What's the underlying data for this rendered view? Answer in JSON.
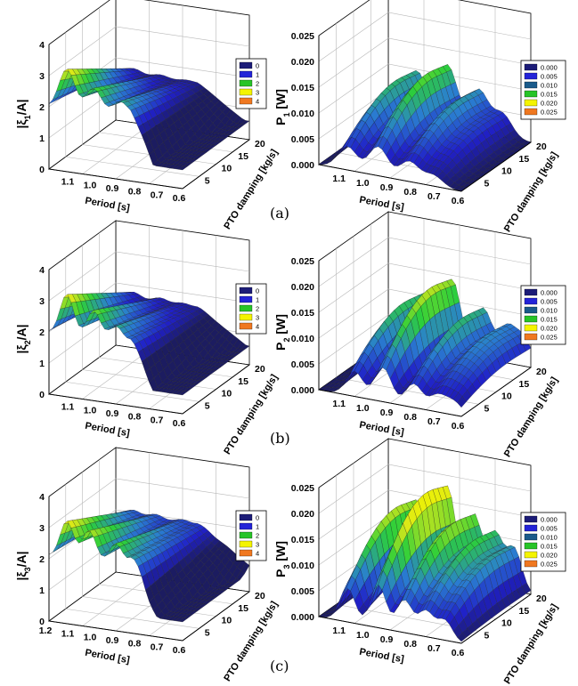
{
  "figure": {
    "rows": [
      {
        "panel_label": "(a)"
      },
      {
        "panel_label": "(b)"
      },
      {
        "panel_label": "(c)"
      }
    ]
  },
  "chart_data": [
    {
      "type": "surface3d",
      "row": 0,
      "col": 0,
      "zlabel_main": "|ξ",
      "zlabel_sub": "1",
      "zlabel_tail": "/A|",
      "xlabel": "Period [s]",
      "ylabel": "PTO damping [kg/s]",
      "x_ticks": [
        "1.1",
        "1.0",
        "0.9",
        "0.8",
        "0.7",
        "0.6"
      ],
      "xlim": [
        1.2,
        0.6
      ],
      "y_ticks": [
        "5",
        "10",
        "15",
        "20"
      ],
      "ylim": [
        0,
        20
      ],
      "z_ticks": [
        "0",
        "1",
        "2",
        "3",
        "4"
      ],
      "zlim": [
        0,
        4
      ],
      "legend": [
        "0",
        "1",
        "2",
        "3",
        "4"
      ],
      "legend_colors": [
        "#1c1c78",
        "#2424d8",
        "#27c427",
        "#f4f400",
        "#f07820"
      ],
      "peaks": [
        [
          1.12,
          3.3
        ],
        [
          1.0,
          2.8
        ],
        [
          0.88,
          2.5
        ],
        [
          0.78,
          2.2
        ]
      ],
      "peak_width": 0.035,
      "base": 2.0,
      "decay": 0.045
    },
    {
      "type": "surface3d",
      "row": 0,
      "col": 1,
      "zlabel_main": "P",
      "zlabel_sub": "1",
      "zlabel_tail": " [W]",
      "xlabel": "Period [s]",
      "ylabel": "PTO damping [kg/s]",
      "x_ticks": [
        "1.1",
        "1.0",
        "0.9",
        "0.8",
        "0.7",
        "0.6"
      ],
      "xlim": [
        1.2,
        0.6
      ],
      "y_ticks": [
        "5",
        "10",
        "15",
        "20"
      ],
      "ylim": [
        0,
        20
      ],
      "z_ticks": [
        "0.000",
        "0.005",
        "0.010",
        "0.015",
        "0.020",
        "0.025"
      ],
      "zlim": [
        0,
        0.025
      ],
      "legend": [
        "0.000",
        "0.005",
        "0.010",
        "0.015",
        "0.020",
        "0.025"
      ],
      "legend_colors": [
        "#1c1c78",
        "#2424d8",
        "#1a5a8a",
        "#27c427",
        "#f4f400",
        "#f07820"
      ],
      "peaks": [
        [
          1.08,
          0.013
        ],
        [
          0.95,
          0.016
        ],
        [
          0.82,
          0.011
        ],
        [
          0.72,
          0.006
        ]
      ],
      "peak_width": 0.04,
      "base": 0.0,
      "power": true
    },
    {
      "type": "surface3d",
      "row": 1,
      "col": 0,
      "zlabel_main": "|ξ",
      "zlabel_sub": "2",
      "zlabel_tail": "/A|",
      "xlabel": "Period [s]",
      "ylabel": "PTO damping [kg/s]",
      "x_ticks": [
        "1.1",
        "1.0",
        "0.9",
        "0.8",
        "0.7",
        "0.6"
      ],
      "xlim": [
        1.2,
        0.6
      ],
      "y_ticks": [
        "5",
        "10",
        "15",
        "20"
      ],
      "ylim": [
        0,
        20
      ],
      "z_ticks": [
        "0",
        "1",
        "2",
        "3",
        "4"
      ],
      "zlim": [
        0,
        4
      ],
      "legend": [
        "0",
        "1",
        "2",
        "3",
        "4"
      ],
      "legend_colors": [
        "#1c1c78",
        "#2424d8",
        "#27c427",
        "#f4f400",
        "#f07820"
      ],
      "peaks": [
        [
          1.12,
          3.3
        ],
        [
          1.0,
          2.9
        ],
        [
          0.9,
          2.5
        ],
        [
          0.8,
          2.2
        ],
        [
          0.7,
          2.0
        ]
      ],
      "peak_width": 0.03,
      "base": 2.0,
      "decay": 0.04
    },
    {
      "type": "surface3d",
      "row": 1,
      "col": 1,
      "zlabel_main": "P",
      "zlabel_sub": "2",
      "zlabel_tail": " [W]",
      "xlabel": "Period [s]",
      "ylabel": "PTO damping [kg/s]",
      "x_ticks": [
        "1.1",
        "1.0",
        "0.9",
        "0.8",
        "0.7",
        "0.6"
      ],
      "xlim": [
        1.2,
        0.6
      ],
      "y_ticks": [
        "5",
        "10",
        "15",
        "20"
      ],
      "ylim": [
        0,
        20
      ],
      "z_ticks": [
        "0.000",
        "0.005",
        "0.010",
        "0.015",
        "0.020",
        "0.025"
      ],
      "zlim": [
        0,
        0.025
      ],
      "legend": [
        "0.000",
        "0.005",
        "0.010",
        "0.015",
        "0.020",
        "0.025"
      ],
      "legend_colors": [
        "#1c1c78",
        "#2424d8",
        "#1a5a8a",
        "#27c427",
        "#f4f400",
        "#f07820"
      ],
      "peaks": [
        [
          1.05,
          0.014
        ],
        [
          0.93,
          0.019
        ],
        [
          0.8,
          0.013
        ],
        [
          0.7,
          0.009
        ],
        [
          0.63,
          0.007
        ]
      ],
      "peak_width": 0.035,
      "base": 0.0,
      "power": true
    },
    {
      "type": "surface3d",
      "row": 2,
      "col": 0,
      "zlabel_main": "|ξ",
      "zlabel_sub": "3",
      "zlabel_tail": "/A|",
      "xlabel": "Period [s]",
      "ylabel": "PTO damping [kg/s]",
      "x_ticks": [
        "1.2",
        "1.1",
        "1.0",
        "0.9",
        "0.8",
        "0.7",
        "0.6"
      ],
      "xlim": [
        1.2,
        0.6
      ],
      "y_ticks": [
        "5",
        "10",
        "15",
        "20"
      ],
      "ylim": [
        0,
        20
      ],
      "z_ticks": [
        "0",
        "1",
        "2",
        "3",
        "4"
      ],
      "zlim": [
        0,
        4
      ],
      "legend": [
        "0",
        "1",
        "2",
        "3",
        "4"
      ],
      "legend_colors": [
        "#1c1c78",
        "#2424d8",
        "#27c427",
        "#f4f400",
        "#f07820"
      ],
      "peaks": [
        [
          1.12,
          3.3
        ],
        [
          1.02,
          3.1
        ],
        [
          0.9,
          2.8
        ],
        [
          0.8,
          2.6
        ],
        [
          0.7,
          2.4
        ]
      ],
      "peak_width": 0.03,
      "base": 2.1,
      "decay": 0.02
    },
    {
      "type": "surface3d",
      "row": 2,
      "col": 1,
      "zlabel_main": "P",
      "zlabel_sub": "3",
      "zlabel_tail": " [W]",
      "xlabel": "Period [s]",
      "ylabel": "PTO damping [kg/s]",
      "x_ticks": [
        "1.1",
        "1.0",
        "0.9",
        "0.8",
        "0.7",
        "0.6"
      ],
      "xlim": [
        1.2,
        0.6
      ],
      "y_ticks": [
        "5",
        "10",
        "15",
        "20"
      ],
      "ylim": [
        0,
        20
      ],
      "z_ticks": [
        "0.000",
        "0.005",
        "0.010",
        "0.015",
        "0.020",
        "0.025"
      ],
      "zlim": [
        0,
        0.025
      ],
      "legend": [
        "0.000",
        "0.005",
        "0.010",
        "0.015",
        "0.020",
        "0.025"
      ],
      "legend_colors": [
        "#1c1c78",
        "#2424d8",
        "#1a5a8a",
        "#27c427",
        "#f4f400",
        "#f07820"
      ],
      "peaks": [
        [
          1.08,
          0.019
        ],
        [
          0.95,
          0.024
        ],
        [
          0.84,
          0.018
        ],
        [
          0.75,
          0.014
        ],
        [
          0.67,
          0.011
        ]
      ],
      "peak_width": 0.032,
      "base": 0.0,
      "power": true
    }
  ]
}
